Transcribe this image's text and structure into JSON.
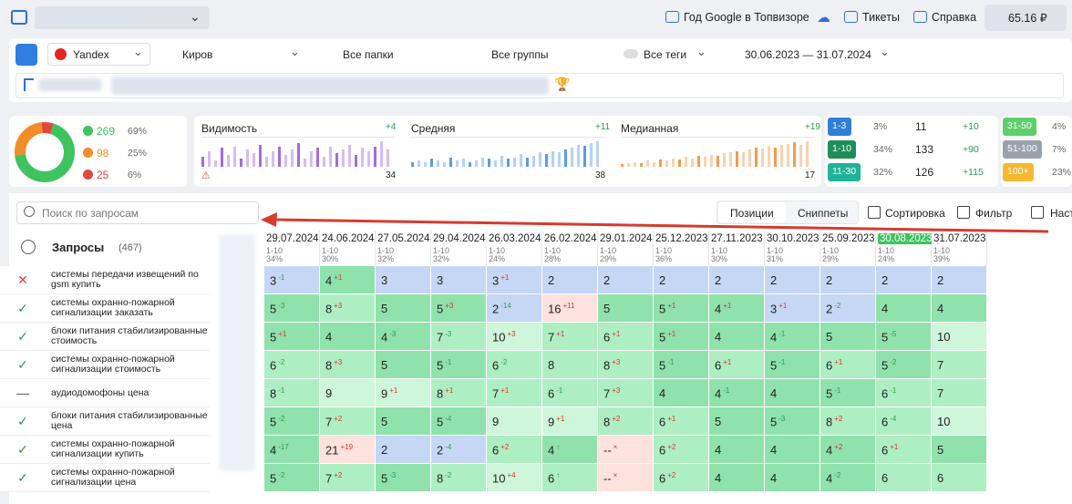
{
  "header": {
    "links": [
      "Год Google в Топвизоре",
      "Тикеты",
      "Справка"
    ],
    "balance": "65.16 ₽"
  },
  "toolbar": {
    "engine": "Yandex",
    "region": "Киров",
    "folders": "Все папки",
    "groups": "Все группы",
    "tags": "Все теги",
    "dates": "30.06.2023 — 31.07.2024"
  },
  "summary": {
    "donut": [
      {
        "count": 269,
        "pct": "69%",
        "color": "#3ec35f"
      },
      {
        "count": 98,
        "pct": "25%",
        "color": "#f28c28"
      },
      {
        "count": 25,
        "pct": "6%",
        "color": "#e5463c"
      }
    ],
    "metrics": [
      {
        "name": "Видимость",
        "change": "+4",
        "value": "34",
        "color": "#a36be0",
        "bars": [
          6,
          9,
          4,
          11,
          7,
          12,
          5,
          10,
          8,
          13,
          6,
          9,
          12,
          7,
          10,
          14,
          5,
          9,
          11,
          6,
          12,
          8,
          10,
          13,
          7,
          11,
          9,
          12,
          15,
          10
        ]
      },
      {
        "name": "Средняя",
        "change": "+11",
        "value": "38",
        "color": "#5b9bea",
        "bars": [
          3,
          4,
          3,
          5,
          4,
          3,
          6,
          4,
          5,
          3,
          4,
          6,
          5,
          4,
          7,
          5,
          6,
          8,
          6,
          7,
          9,
          8,
          10,
          9,
          11,
          12,
          14,
          13,
          15,
          16
        ]
      },
      {
        "name": "Медианная",
        "change": "+19",
        "value": "17",
        "color": "#f29b52",
        "bars": [
          2,
          3,
          4,
          3,
          5,
          4,
          6,
          5,
          7,
          6,
          8,
          7,
          9,
          8,
          10,
          9,
          11,
          12,
          13,
          12,
          14,
          16,
          15,
          17,
          16,
          18,
          19,
          20,
          18,
          21
        ]
      }
    ],
    "ranges": [
      {
        "label": "1-3",
        "pct": "3%",
        "count": "11",
        "change": "+10",
        "color": "#2f7fd9"
      },
      {
        "label": "1-10",
        "pct": "34%",
        "count": "133",
        "change": "+90",
        "color": "#1e8f5a"
      },
      {
        "label": "11-30",
        "pct": "32%",
        "count": "126",
        "change": "+115",
        "color": "#1fb39a"
      },
      {
        "label": "31-50",
        "pct": "4%",
        "color": "#5fcf6b"
      },
      {
        "label": "51-100",
        "pct": "7%",
        "color": "#9aa3ad"
      },
      {
        "label": "100+",
        "pct": "23%",
        "color": "#f7b733"
      }
    ]
  },
  "search": {
    "placeholder": "Поиск по запросам"
  },
  "tabs": [
    "Позиции",
    "Сниппеты"
  ],
  "actions": [
    "Сортировка",
    "Фильтр",
    "Наст"
  ],
  "table": {
    "title": "Запросы",
    "count": "(467)",
    "columns": [
      {
        "date": "29.07.2024",
        "range": "1-10",
        "pct": "34%"
      },
      {
        "date": "24.06.2024",
        "range": "1-10",
        "pct": "30%"
      },
      {
        "date": "27.05.2024",
        "range": "1-10",
        "pct": "32%"
      },
      {
        "date": "29.04.2024",
        "range": "1-10",
        "pct": "32%"
      },
      {
        "date": "26.03.2024",
        "range": "1-10",
        "pct": "24%"
      },
      {
        "date": "26.02.2024",
        "range": "1-10",
        "pct": "28%"
      },
      {
        "date": "29.01.2024",
        "range": "1-10",
        "pct": "29%"
      },
      {
        "date": "25.12.2023",
        "range": "1-10",
        "pct": "36%"
      },
      {
        "date": "27.11.2023",
        "range": "1-10",
        "pct": "30%"
      },
      {
        "date": "30.10.2023",
        "range": "1-10",
        "pct": "31%"
      },
      {
        "date": "25.09.2023",
        "range": "1-10",
        "pct": "29%"
      },
      {
        "date": "30.08.2023",
        "range": "1-10",
        "pct": "24%"
      },
      {
        "date": "31.07.2023",
        "range": "1-10",
        "pct": "39%"
      }
    ],
    "rows": [
      {
        "query": "системы передачи извещений по gsm купить",
        "status": "x",
        "cells": [
          [
            "3",
            "-1"
          ],
          [
            "4",
            "+1"
          ],
          [
            "3",
            ""
          ],
          [
            "3",
            ""
          ],
          [
            "3",
            "+1"
          ],
          [
            "2",
            ""
          ],
          [
            "2",
            ""
          ],
          [
            "2",
            ""
          ],
          [
            "2",
            ""
          ],
          [
            "2",
            ""
          ],
          [
            "2",
            ""
          ],
          [
            "2",
            ""
          ],
          [
            "2",
            ""
          ]
        ]
      },
      {
        "query": "системы охранно-пожарной сигнализации заказать",
        "status": "ok",
        "cells": [
          [
            "5",
            "-3"
          ],
          [
            "8",
            "+3"
          ],
          [
            "5",
            ""
          ],
          [
            "5",
            "+3"
          ],
          [
            "2",
            "-14"
          ],
          [
            "16",
            "+11"
          ],
          [
            "5",
            ""
          ],
          [
            "5",
            "+1"
          ],
          [
            "4",
            "+1"
          ],
          [
            "3",
            "+1"
          ],
          [
            "2",
            "-2"
          ],
          [
            "4",
            ""
          ],
          [
            "4",
            ""
          ]
        ]
      },
      {
        "query": "блоки питания стабилизированные стоимость",
        "status": "ok",
        "cells": [
          [
            "5",
            "+1"
          ],
          [
            "4",
            ""
          ],
          [
            "4",
            "-3"
          ],
          [
            "7",
            "-3"
          ],
          [
            "10",
            "+3"
          ],
          [
            "7",
            "+1"
          ],
          [
            "6",
            "+1"
          ],
          [
            "5",
            "+1"
          ],
          [
            "4",
            ""
          ],
          [
            "4",
            "-1"
          ],
          [
            "5",
            ""
          ],
          [
            "5",
            "-5"
          ],
          [
            "10",
            ""
          ]
        ]
      },
      {
        "query": "системы охранно-пожарной сигнализации стоимость",
        "status": "ok",
        "cells": [
          [
            "6",
            "-2"
          ],
          [
            "8",
            "+3"
          ],
          [
            "5",
            ""
          ],
          [
            "5",
            "-1"
          ],
          [
            "6",
            "-2"
          ],
          [
            "8",
            ""
          ],
          [
            "8",
            "+3"
          ],
          [
            "5",
            "-1"
          ],
          [
            "6",
            "+1"
          ],
          [
            "5",
            "-1"
          ],
          [
            "6",
            "+1"
          ],
          [
            "5",
            "-2"
          ],
          [
            "7",
            ""
          ]
        ]
      },
      {
        "query": "аудиодомофоны цена",
        "status": "dash",
        "cells": [
          [
            "8",
            "-1"
          ],
          [
            "9",
            ""
          ],
          [
            "9",
            "+1"
          ],
          [
            "8",
            "+1"
          ],
          [
            "7",
            "+1"
          ],
          [
            "6",
            "-1"
          ],
          [
            "7",
            "+3"
          ],
          [
            "4",
            ""
          ],
          [
            "4",
            "-1"
          ],
          [
            "4",
            ""
          ],
          [
            "5",
            "-1"
          ],
          [
            "6",
            "-1"
          ],
          [
            "7",
            ""
          ]
        ]
      },
      {
        "query": "блоки питания стабилизированные цена",
        "status": "ok",
        "cells": [
          [
            "5",
            "-2"
          ],
          [
            "7",
            "+2"
          ],
          [
            "5",
            ""
          ],
          [
            "5",
            "-4"
          ],
          [
            "9",
            ""
          ],
          [
            "9",
            "+1"
          ],
          [
            "8",
            "+2"
          ],
          [
            "6",
            "+1"
          ],
          [
            "5",
            ""
          ],
          [
            "5",
            "-3"
          ],
          [
            "8",
            "+2"
          ],
          [
            "6",
            "-4"
          ],
          [
            "10",
            ""
          ]
        ]
      },
      {
        "query": "системы охранно-пожарной сигнализации купить",
        "status": "ok",
        "cells": [
          [
            "4",
            "-17"
          ],
          [
            "21",
            "+19"
          ],
          [
            "2",
            ""
          ],
          [
            "2",
            "-4"
          ],
          [
            "6",
            "+2"
          ],
          [
            "4",
            "↑"
          ],
          [
            "--",
            "×"
          ],
          [
            "6",
            "+2"
          ],
          [
            "4",
            ""
          ],
          [
            "4",
            ""
          ],
          [
            "4",
            "+2"
          ],
          [
            "6",
            "+1"
          ],
          [
            "5",
            ""
          ]
        ]
      },
      {
        "query": "системы охранно-пожарной сигнализации цена",
        "status": "ok",
        "cells": [
          [
            "5",
            "-2"
          ],
          [
            "7",
            "+2"
          ],
          [
            "5",
            "-3"
          ],
          [
            "8",
            "-2"
          ],
          [
            "10",
            "+4"
          ],
          [
            "6",
            "↑"
          ],
          [
            "--",
            "×"
          ],
          [
            "6",
            "+2"
          ],
          [
            "4",
            ""
          ],
          [
            "4",
            ""
          ],
          [
            "4",
            "-2"
          ],
          [
            "6",
            ""
          ],
          [
            "6",
            ""
          ]
        ]
      }
    ]
  }
}
